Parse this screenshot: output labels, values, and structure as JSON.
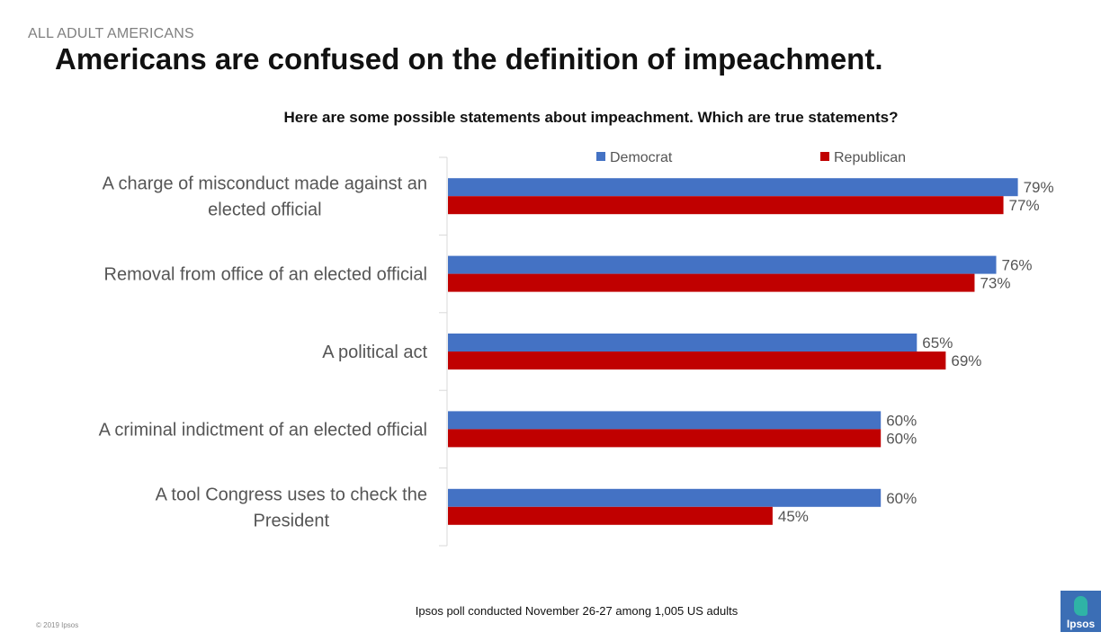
{
  "header": {
    "kicker": "ALL ADULT AMERICANS",
    "title": "Americans are confused on the definition of impeachment."
  },
  "chart_data": {
    "type": "bar",
    "orientation": "horizontal",
    "title": "Here are some possible statements about impeachment. Which are true statements?",
    "categories": [
      [
        "A charge of misconduct made against an",
        "elected official"
      ],
      [
        "Removal from office of an elected official"
      ],
      [
        "A political act"
      ],
      [
        "A criminal indictment of an elected official"
      ],
      [
        "A tool Congress uses to check the",
        "President"
      ]
    ],
    "series": [
      {
        "name": "Democrat",
        "color": "#4472c4",
        "values": [
          79,
          76,
          65,
          60,
          60
        ],
        "labels": [
          "79%",
          "76%",
          "65%",
          "60%",
          "60%"
        ]
      },
      {
        "name": "Republican",
        "color": "#c00000",
        "values": [
          77,
          73,
          69,
          60,
          45
        ],
        "labels": [
          "77%",
          "73%",
          "69%",
          "60%",
          "45%"
        ]
      }
    ],
    "value_unit": "%",
    "xlim": [
      0,
      100
    ],
    "legend_position": "top",
    "grid": false
  },
  "footer": {
    "source": "Ipsos poll conducted November 26-27 among 1,005 US adults",
    "copyright": "© 2019 Ipsos"
  },
  "logo": {
    "text": "Ipsos",
    "icon": "ipsos-logo-icon"
  }
}
